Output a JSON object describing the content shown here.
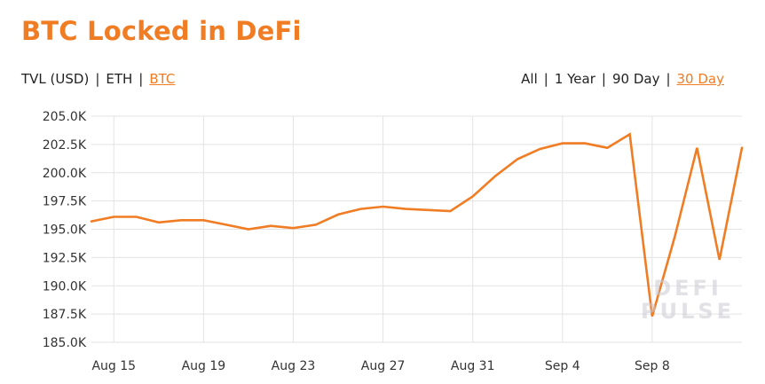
{
  "header": {
    "title": "BTC Locked in DeFi"
  },
  "unit_toggle": [
    {
      "label": "TVL (USD)",
      "active": false
    },
    {
      "label": "ETH",
      "active": false
    },
    {
      "label": "BTC",
      "active": true
    }
  ],
  "range_toggle": [
    {
      "label": "All",
      "active": false
    },
    {
      "label": "1 Year",
      "active": false
    },
    {
      "label": "90 Day",
      "active": false
    },
    {
      "label": "30 Day",
      "active": true
    }
  ],
  "separator": "|",
  "watermark": {
    "line1": "DEFI",
    "line2": "PULSE"
  },
  "colors": {
    "accent": "#f07c24",
    "grid": "#e3e3e3",
    "text": "#222222"
  },
  "chart_data": {
    "type": "line",
    "title": "BTC Locked in DeFi",
    "xlabel": "",
    "ylabel": "",
    "ylim": [
      185000,
      205000
    ],
    "yticks": [
      185000,
      187500,
      190000,
      192500,
      195000,
      197500,
      200000,
      202500,
      205000
    ],
    "ytick_labels": [
      "185.0K",
      "187.5K",
      "190.0K",
      "192.5K",
      "195.0K",
      "197.5K",
      "200.0K",
      "202.5K",
      "205.0K"
    ],
    "xtick_labels": [
      "Aug 15",
      "Aug 19",
      "Aug 23",
      "Aug 27",
      "Aug 31",
      "Sep 4",
      "Sep 8"
    ],
    "grid": true,
    "series": [
      {
        "x": [
          "Aug 14",
          "Aug 15",
          "Aug 16",
          "Aug 17",
          "Aug 18",
          "Aug 19",
          "Aug 20",
          "Aug 21",
          "Aug 22",
          "Aug 23",
          "Aug 24",
          "Aug 25",
          "Aug 26",
          "Aug 27",
          "Aug 28",
          "Aug 29",
          "Aug 30",
          "Aug 31",
          "Sep 1",
          "Sep 2",
          "Sep 3",
          "Sep 4",
          "Sep 5",
          "Sep 6",
          "Sep 7",
          "Sep 8",
          "Sep 9",
          "Sep 10",
          "Sep 11",
          "Sep 12"
        ],
        "values": [
          195700,
          196100,
          196100,
          195600,
          195800,
          195800,
          195400,
          195000,
          195300,
          195100,
          195400,
          196300,
          196800,
          197000,
          196800,
          196700,
          196600,
          197900,
          199700,
          201200,
          202100,
          202600,
          202600,
          202200,
          203400,
          187300,
          194300,
          202200,
          192300,
          202200
        ]
      }
    ]
  }
}
